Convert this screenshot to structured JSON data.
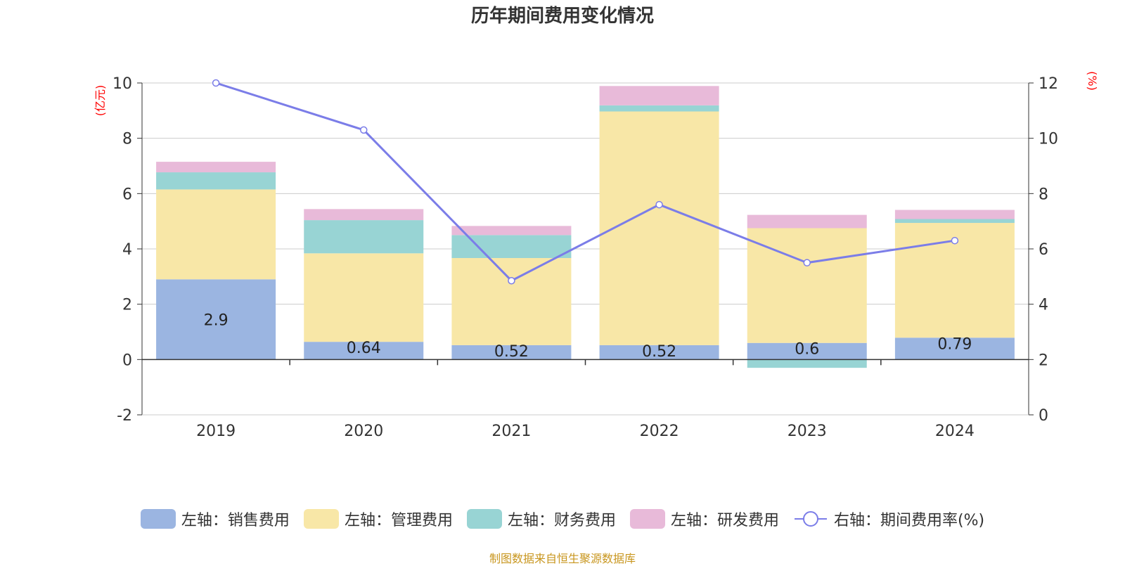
{
  "title": "历年期间费用变化情况",
  "source_note": "制图数据来自恒生聚源数据库",
  "left_axis_unit": "(亿元)",
  "right_axis_unit": "(%)",
  "colors": {
    "sales": "#9bb5e1",
    "admin": "#f8e7a7",
    "finance": "#98d4d4",
    "rd": "#e8bad9",
    "rate_line": "#7b7de8",
    "axis_unit": "#ff0000",
    "source": "#c8961e"
  },
  "legend": [
    {
      "label": "左轴：销售费用",
      "color": "#9bb5e1",
      "kind": "bar"
    },
    {
      "label": "左轴：管理费用",
      "color": "#f8e7a7",
      "kind": "bar"
    },
    {
      "label": "左轴：财务费用",
      "color": "#98d4d4",
      "kind": "bar"
    },
    {
      "label": "左轴：研发费用",
      "color": "#e8bad9",
      "kind": "bar"
    },
    {
      "label": "右轴：期间费用率(%)",
      "color": "#7b7de8",
      "kind": "line"
    }
  ],
  "chart_data": {
    "type": "bar",
    "stacked": true,
    "categories": [
      "2019",
      "2020",
      "2021",
      "2022",
      "2023",
      "2024"
    ],
    "series": [
      {
        "name": "左轴：销售费用",
        "axis": "left",
        "values": [
          2.9,
          0.64,
          0.52,
          0.52,
          0.6,
          0.79
        ],
        "labels": [
          "2.9",
          "0.64",
          "0.52",
          "0.52",
          "0.6",
          "0.79"
        ]
      },
      {
        "name": "左轴：管理费用",
        "axis": "left",
        "values": [
          3.25,
          3.2,
          3.15,
          8.45,
          4.15,
          4.15
        ]
      },
      {
        "name": "左轴：财务费用",
        "axis": "left",
        "values": [
          0.62,
          1.2,
          0.83,
          0.22,
          -0.3,
          0.14
        ]
      },
      {
        "name": "左轴：研发费用",
        "axis": "left",
        "values": [
          0.38,
          0.4,
          0.33,
          0.7,
          0.48,
          0.33
        ]
      },
      {
        "name": "右轴：期间费用率(%)",
        "axis": "right",
        "type": "line",
        "values": [
          12.0,
          10.3,
          4.85,
          7.6,
          5.5,
          6.3
        ]
      }
    ],
    "left_axis": {
      "ylim": [
        -2,
        10
      ],
      "ticks": [
        "-2",
        "0",
        "2",
        "4",
        "6",
        "8",
        "10"
      ],
      "label": "(亿元)"
    },
    "right_axis": {
      "ylim": [
        0,
        12
      ],
      "ticks": [
        "0",
        "2",
        "4",
        "6",
        "8",
        "10",
        "12"
      ],
      "label": "(%)"
    },
    "grid": true,
    "legend_position": "bottom"
  }
}
